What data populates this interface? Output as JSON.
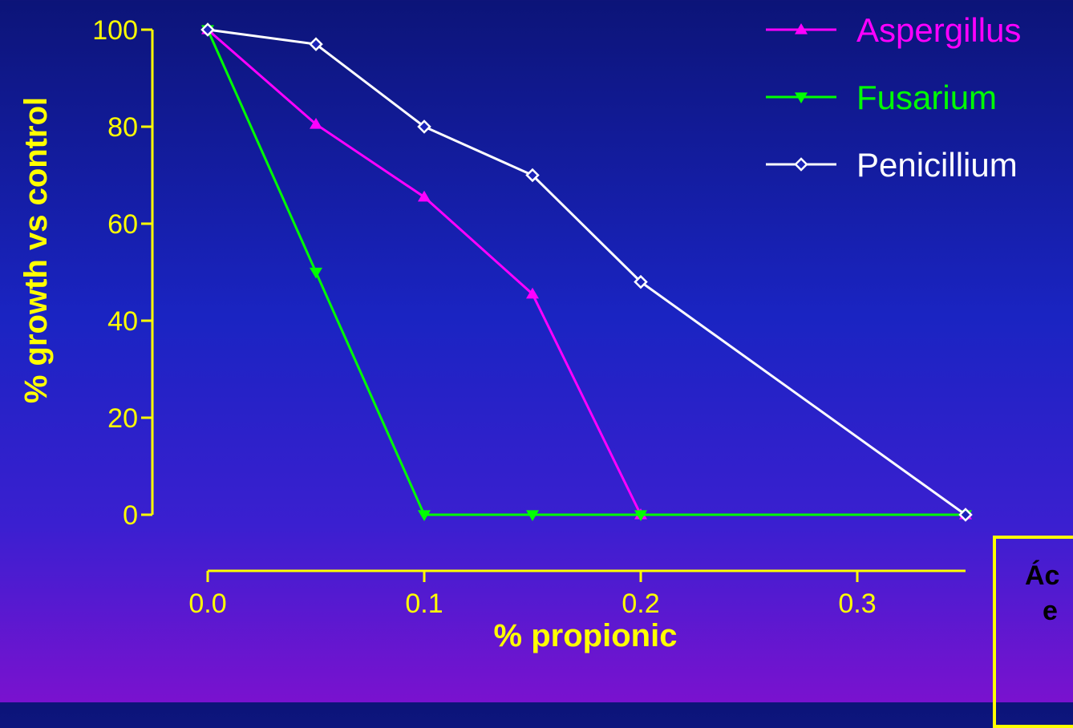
{
  "chart_data": {
    "type": "line",
    "title": "",
    "xlabel": "% propionic",
    "ylabel": "% growth vs control",
    "x": [
      0.0,
      0.05,
      0.1,
      0.15,
      0.2,
      0.35
    ],
    "x_ticks": [
      0.0,
      0.1,
      0.2,
      0.3
    ],
    "x_tick_labels": [
      "0.0",
      "0.1",
      "0.2",
      "0.3"
    ],
    "y_ticks": [
      0,
      20,
      40,
      60,
      80,
      100
    ],
    "y_tick_labels": [
      "0",
      "20",
      "40",
      "60",
      "80",
      "100"
    ],
    "xlim": [
      0.0,
      0.35
    ],
    "ylim": [
      0,
      100
    ],
    "grid": false,
    "legend_position": "top-right",
    "series": [
      {
        "name": "Aspergillus",
        "color": "#ff00ff",
        "marker": "triangle-up-filled",
        "values": [
          100,
          80.5,
          65.5,
          45.5,
          0,
          0
        ]
      },
      {
        "name": "Fusarium",
        "color": "#00ff00",
        "marker": "triangle-down-filled",
        "values": [
          100,
          50,
          0,
          0,
          0,
          0
        ]
      },
      {
        "name": "Penicillium",
        "color": "#ffffff",
        "marker": "diamond-open",
        "values": [
          100,
          97,
          80,
          70,
          48,
          0
        ]
      }
    ]
  },
  "note_box": {
    "line1": "Ác",
    "line2": "e"
  },
  "colors": {
    "axis": "#ffff00",
    "background_top": "#0c1478",
    "background_bottom": "#7a12cf"
  }
}
